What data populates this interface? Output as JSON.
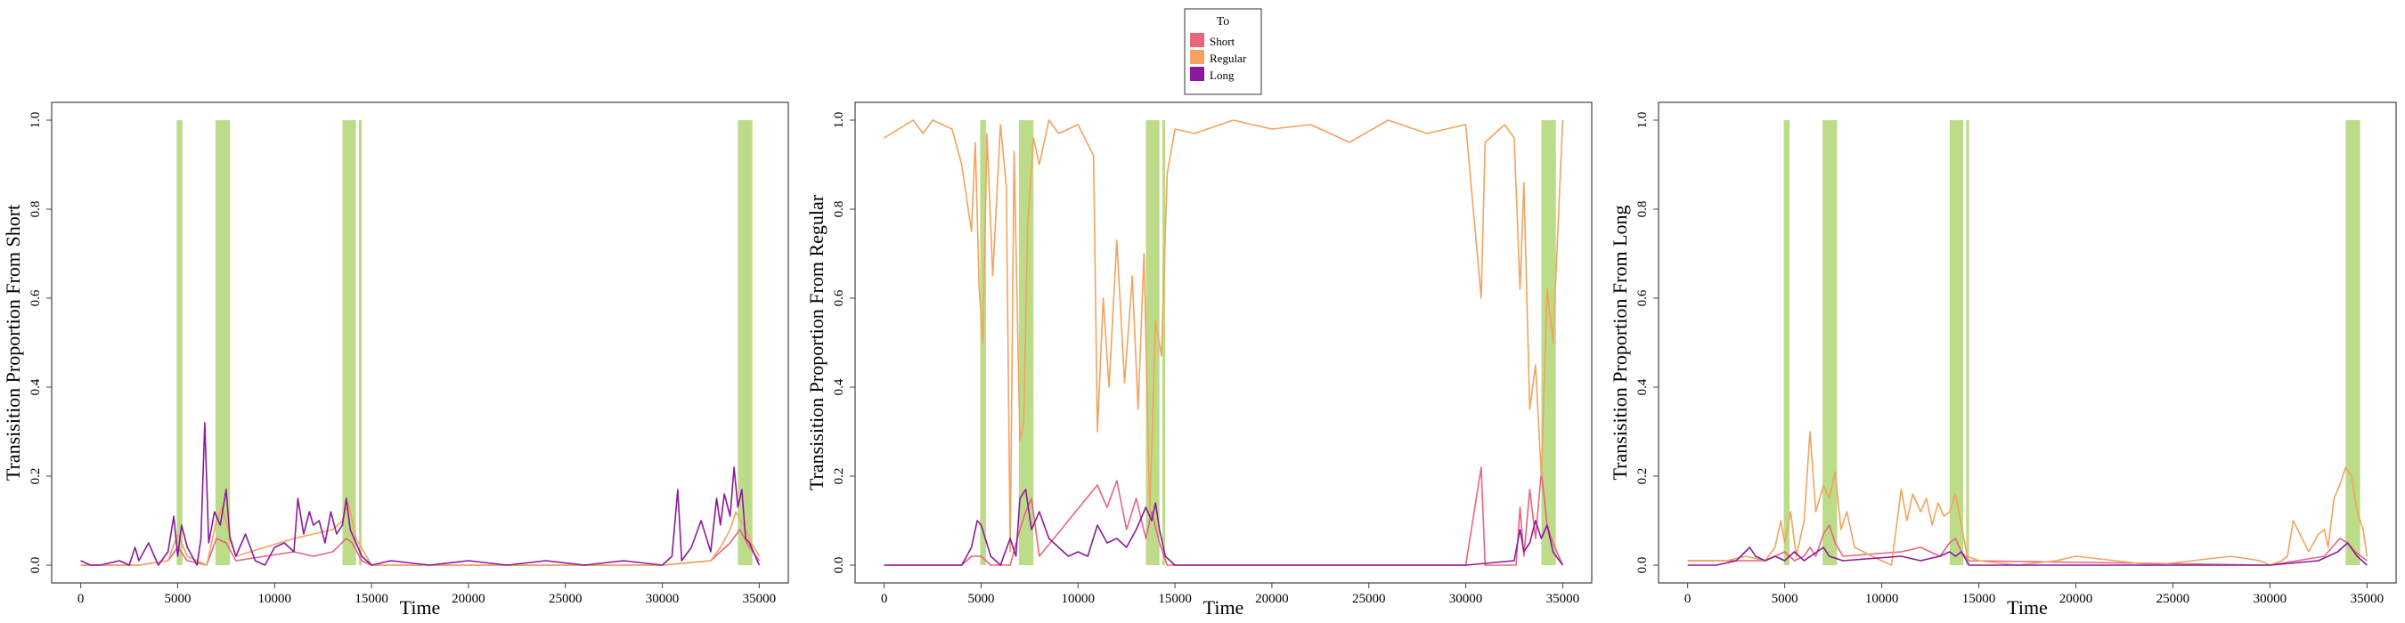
{
  "legend": {
    "title": "To",
    "items": [
      {
        "label": "Short",
        "color": "#e8657a"
      },
      {
        "label": "Regular",
        "color": "#f2a35e"
      },
      {
        "label": "Long",
        "color": "#8a1a9b"
      }
    ]
  },
  "highlight_color": "#bcdc8a",
  "chart_data": [
    {
      "type": "line",
      "xlabel": "Time",
      "ylabel": "Transisition Proportion From Short",
      "xlim": [
        -1500,
        36500
      ],
      "ylim": [
        -0.04,
        1.04
      ],
      "xticks": [
        0,
        5000,
        10000,
        15000,
        20000,
        25000,
        30000,
        35000
      ],
      "yticks": [
        "0.0",
        "0.2",
        "0.4",
        "0.6",
        "0.8",
        "1.0"
      ],
      "highlight_ranges": [
        [
          4950,
          5250
        ],
        [
          6950,
          7700
        ],
        [
          13500,
          14200
        ],
        [
          14350,
          14500
        ],
        [
          33900,
          34650
        ]
      ],
      "series": [
        {
          "name": "Short",
          "color": "#e8657a",
          "x": [
            0,
            3000,
            4500,
            5000,
            5500,
            6500,
            7000,
            7500,
            8000,
            11000,
            12000,
            13000,
            13700,
            14000,
            14500,
            15000,
            30000,
            32500,
            33000,
            33500,
            34000,
            34500,
            35000
          ],
          "y": [
            0,
            0,
            0.01,
            0.04,
            0.01,
            0,
            0.06,
            0.05,
            0.01,
            0.03,
            0.02,
            0.03,
            0.06,
            0.05,
            0.01,
            0,
            0,
            0.01,
            0.03,
            0.05,
            0.08,
            0.04,
            0.01
          ]
        },
        {
          "name": "Regular",
          "color": "#f2a35e",
          "x": [
            0,
            3000,
            4500,
            5000,
            5500,
            6500,
            7000,
            7300,
            7600,
            8000,
            11000,
            12000,
            13000,
            13500,
            13800,
            14200,
            15000,
            30000,
            32500,
            33000,
            33500,
            33800,
            34200,
            34600,
            35000
          ],
          "y": [
            0,
            0,
            0.01,
            0.07,
            0.02,
            0,
            0.1,
            0.13,
            0.08,
            0.02,
            0.06,
            0.07,
            0.08,
            0.1,
            0.14,
            0.06,
            0,
            0,
            0.01,
            0.04,
            0.08,
            0.12,
            0.09,
            0.05,
            0.02
          ]
        },
        {
          "name": "Long",
          "color": "#8a1a9b",
          "x": [
            0,
            500,
            1000,
            2000,
            2500,
            2800,
            3000,
            3500,
            4000,
            4500,
            4800,
            5000,
            5200,
            5500,
            6000,
            6200,
            6400,
            6600,
            6900,
            7200,
            7500,
            7700,
            8000,
            8500,
            9000,
            9500,
            10000,
            10500,
            11000,
            11200,
            11500,
            11800,
            12000,
            12300,
            12600,
            12900,
            13200,
            13500,
            13700,
            13900,
            14100,
            14500,
            15000,
            16000,
            18000,
            20000,
            22000,
            24000,
            26000,
            28000,
            30000,
            30500,
            30800,
            31000,
            31500,
            32000,
            32500,
            32800,
            33000,
            33200,
            33500,
            33700,
            33900,
            34100,
            34300,
            34500,
            34800,
            35000
          ],
          "y": [
            0.01,
            0,
            0,
            0.01,
            0,
            0.04,
            0.01,
            0.05,
            0,
            0.03,
            0.11,
            0.02,
            0.09,
            0.04,
            0,
            0.06,
            0.32,
            0.05,
            0.12,
            0.09,
            0.17,
            0.06,
            0.02,
            0.07,
            0.01,
            0,
            0.04,
            0.05,
            0.03,
            0.15,
            0.07,
            0.12,
            0.09,
            0.1,
            0.05,
            0.12,
            0.07,
            0.09,
            0.15,
            0.08,
            0.06,
            0.02,
            0,
            0.01,
            0,
            0.01,
            0,
            0.01,
            0,
            0.01,
            0,
            0.02,
            0.17,
            0.01,
            0.04,
            0.1,
            0.03,
            0.15,
            0.09,
            0.16,
            0.11,
            0.22,
            0.13,
            0.17,
            0.06,
            0.05,
            0.02,
            0
          ]
        }
      ]
    },
    {
      "type": "line",
      "xlabel": "Time",
      "ylabel": "Transisition Proportion From Regular",
      "xlim": [
        -1500,
        36500
      ],
      "ylim": [
        -0.04,
        1.04
      ],
      "xticks": [
        0,
        5000,
        10000,
        15000,
        20000,
        25000,
        30000,
        35000
      ],
      "yticks": [
        "0.0",
        "0.2",
        "0.4",
        "0.6",
        "0.8",
        "1.0"
      ],
      "highlight_ranges": [
        [
          4950,
          5250
        ],
        [
          6950,
          7700
        ],
        [
          13500,
          14200
        ],
        [
          14350,
          14500
        ],
        [
          33900,
          34650
        ]
      ],
      "series": [
        {
          "name": "Short",
          "color": "#e8657a",
          "x": [
            0,
            4000,
            4500,
            5000,
            5500,
            6500,
            7000,
            7300,
            7600,
            8000,
            11000,
            11500,
            12000,
            12500,
            13000,
            13500,
            13800,
            14200,
            14600,
            30000,
            30800,
            31000,
            32600,
            32800,
            33000,
            33300,
            33600,
            33900,
            34200,
            34500,
            35000
          ],
          "y": [
            0,
            0,
            0.02,
            0.02,
            0,
            0,
            0.08,
            0.12,
            0.15,
            0.02,
            0.18,
            0.13,
            0.19,
            0.08,
            0.15,
            0.06,
            0.12,
            0.05,
            0,
            0,
            0.22,
            0,
            0,
            0.13,
            0.02,
            0.17,
            0.06,
            0.21,
            0.09,
            0.05,
            0
          ]
        },
        {
          "name": "Regular",
          "color": "#f2a35e",
          "x": [
            0,
            1500,
            2000,
            2500,
            3500,
            4000,
            4500,
            4700,
            4900,
            5100,
            5300,
            5600,
            6000,
            6300,
            6500,
            6700,
            7000,
            7200,
            7400,
            7700,
            8000,
            8500,
            9000,
            10000,
            10800,
            11000,
            11300,
            11600,
            12000,
            12400,
            12800,
            13100,
            13400,
            13700,
            14000,
            14300,
            14600,
            15000,
            16000,
            18000,
            20000,
            22000,
            24000,
            26000,
            28000,
            29000,
            30000,
            30800,
            31000,
            32000,
            32500,
            32800,
            33000,
            33300,
            33600,
            33900,
            34200,
            34500,
            35000
          ],
          "y": [
            0.96,
            1,
            0.97,
            1,
            0.98,
            0.9,
            0.75,
            0.95,
            0.62,
            0.5,
            0.97,
            0.65,
            0.99,
            0.85,
            0.03,
            0.93,
            0.28,
            0.32,
            0.76,
            0.96,
            0.9,
            1,
            0.97,
            0.99,
            0.92,
            0.3,
            0.6,
            0.4,
            0.73,
            0.41,
            0.65,
            0.35,
            0.7,
            0.12,
            0.55,
            0.47,
            0.88,
            0.98,
            0.97,
            1,
            0.98,
            0.99,
            0.95,
            1,
            0.97,
            0.98,
            0.99,
            0.6,
            0.95,
            0.99,
            0.96,
            0.62,
            0.86,
            0.35,
            0.45,
            0.2,
            0.62,
            0.5,
            1
          ]
        },
        {
          "name": "Long",
          "color": "#8a1a9b",
          "x": [
            0,
            2000,
            4000,
            4500,
            4800,
            5000,
            5500,
            6000,
            6500,
            6800,
            7000,
            7300,
            7600,
            8000,
            8500,
            9500,
            10000,
            10500,
            11000,
            11500,
            12000,
            12500,
            13000,
            13500,
            13800,
            14000,
            14200,
            14500,
            15000,
            30000,
            32500,
            32800,
            33000,
            33300,
            33600,
            33900,
            34200,
            34500,
            35000
          ],
          "y": [
            0,
            0,
            0,
            0.04,
            0.1,
            0.09,
            0.02,
            0,
            0.06,
            0.02,
            0.15,
            0.17,
            0.08,
            0.12,
            0.06,
            0.02,
            0.03,
            0.02,
            0.09,
            0.05,
            0.06,
            0.04,
            0.08,
            0.13,
            0.1,
            0.14,
            0.08,
            0.02,
            0,
            0,
            0.01,
            0.08,
            0.03,
            0.05,
            0.1,
            0.06,
            0.09,
            0.03,
            0
          ]
        }
      ]
    },
    {
      "type": "line",
      "xlabel": "Time",
      "ylabel": "Transisition Proportion From Long",
      "xlim": [
        -1500,
        36500
      ],
      "ylim": [
        -0.04,
        1.04
      ],
      "xticks": [
        0,
        5000,
        10000,
        15000,
        20000,
        25000,
        30000,
        35000
      ],
      "yticks": [
        "0.0",
        "0.2",
        "0.4",
        "0.6",
        "0.8",
        "1.0"
      ],
      "highlight_ranges": [
        [
          4950,
          5250
        ],
        [
          6950,
          7700
        ],
        [
          13500,
          14200
        ],
        [
          14350,
          14500
        ],
        [
          33900,
          34650
        ]
      ],
      "series": [
        {
          "name": "Short",
          "color": "#e8657a",
          "x": [
            0,
            4000,
            4500,
            5000,
            5500,
            6000,
            6300,
            6600,
            7000,
            7300,
            7600,
            8000,
            11000,
            12000,
            13000,
            13500,
            13800,
            14100,
            14500,
            30000,
            32800,
            33200,
            33600,
            34000,
            34400,
            35000
          ],
          "y": [
            0.01,
            0.01,
            0.02,
            0.03,
            0.01,
            0.02,
            0.04,
            0.02,
            0.07,
            0.09,
            0.05,
            0.02,
            0.03,
            0.04,
            0.02,
            0.05,
            0.06,
            0.03,
            0.01,
            0,
            0.02,
            0.04,
            0.06,
            0.05,
            0.03,
            0.01
          ]
        },
        {
          "name": "Regular",
          "color": "#f2a35e",
          "x": [
            0,
            2000,
            3000,
            4000,
            4500,
            4800,
            5000,
            5300,
            5600,
            6000,
            6300,
            6600,
            6800,
            7000,
            7300,
            7600,
            7900,
            8200,
            8600,
            9500,
            10500,
            11000,
            11300,
            11600,
            12000,
            12300,
            12600,
            12900,
            13200,
            13500,
            13800,
            14100,
            14400,
            15000,
            17000,
            19000,
            20000,
            22000,
            24000,
            26000,
            28000,
            29500,
            30000,
            30600,
            30900,
            31200,
            32000,
            32500,
            32800,
            33000,
            33300,
            33600,
            33900,
            34200,
            34500,
            34800,
            35000
          ],
          "y": [
            0.01,
            0.01,
            0.02,
            0.01,
            0.04,
            0.1,
            0.05,
            0.12,
            0.02,
            0.1,
            0.3,
            0.12,
            0.15,
            0.18,
            0.15,
            0.21,
            0.08,
            0.12,
            0.04,
            0.02,
            0,
            0.17,
            0.1,
            0.16,
            0.12,
            0.15,
            0.09,
            0.14,
            0.11,
            0.12,
            0.16,
            0.09,
            0.02,
            0.01,
            0,
            0.01,
            0.02,
            0.01,
            0,
            0.01,
            0.02,
            0.01,
            0,
            0.01,
            0.02,
            0.1,
            0.03,
            0.07,
            0.08,
            0.04,
            0.15,
            0.18,
            0.22,
            0.2,
            0.12,
            0.08,
            0.02
          ]
        },
        {
          "name": "Long",
          "color": "#8a1a9b",
          "x": [
            0,
            1500,
            2500,
            3200,
            3500,
            4000,
            4500,
            5000,
            5500,
            6000,
            7000,
            7300,
            8000,
            11000,
            12000,
            13000,
            13500,
            13800,
            14100,
            14500,
            30000,
            32500,
            33000,
            33500,
            34000,
            34500,
            35000
          ],
          "y": [
            0,
            0,
            0.01,
            0.04,
            0.02,
            0.01,
            0.02,
            0.01,
            0.03,
            0.01,
            0.04,
            0.02,
            0.01,
            0.02,
            0.01,
            0.02,
            0.03,
            0.02,
            0.03,
            0,
            0,
            0.01,
            0.02,
            0.03,
            0.05,
            0.02,
            0
          ]
        }
      ]
    }
  ]
}
